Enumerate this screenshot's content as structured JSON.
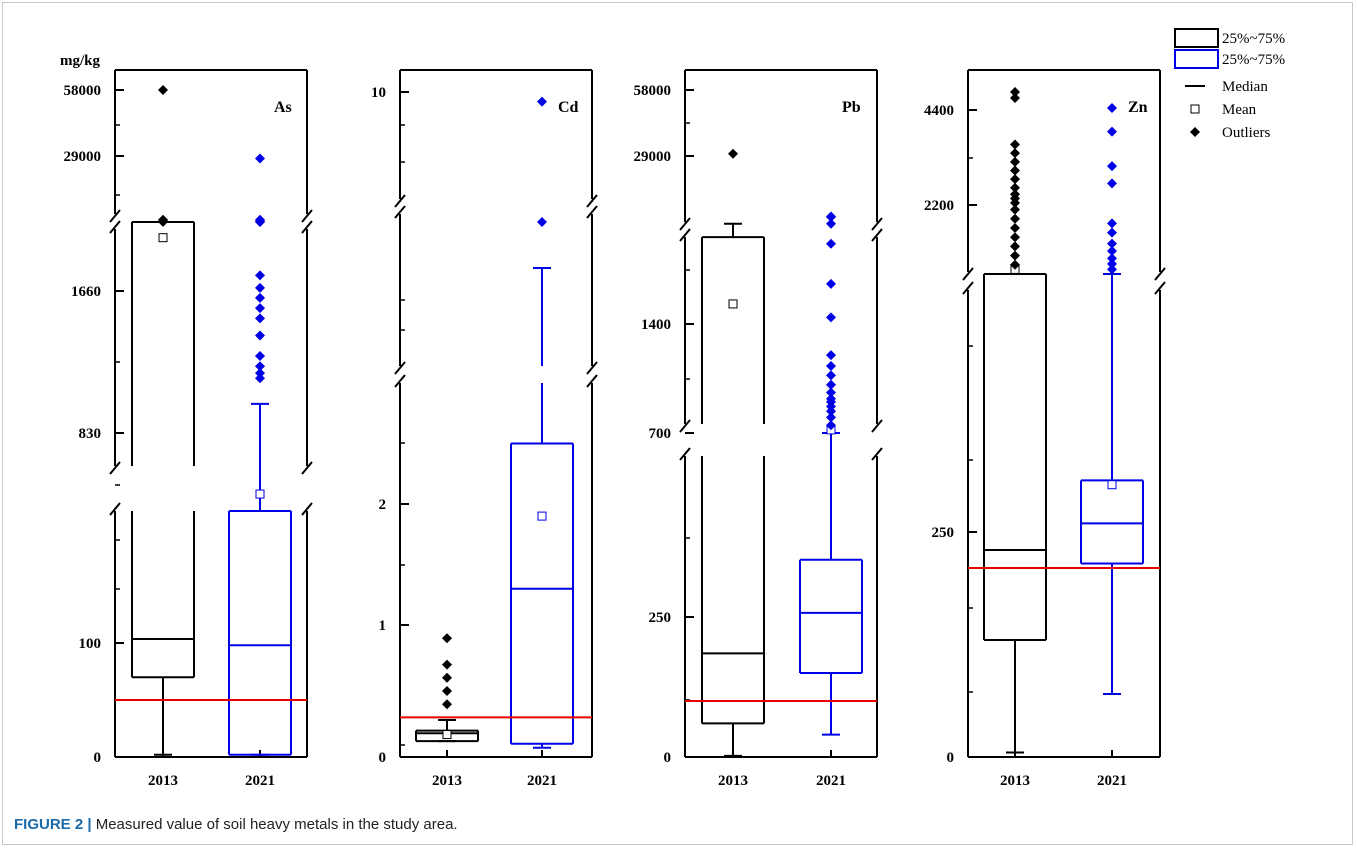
{
  "caption": {
    "label": "FIGURE 2 |",
    "text": "Measured value of soil heavy metals in the study area."
  },
  "colors": {
    "c2013": "#000000",
    "c2021": "#0000e6",
    "threshold": "#e60000"
  },
  "chart_data": [
    {
      "type": "box",
      "metal": "As",
      "unit": "mg/kg",
      "categories": [
        "2013",
        "2021"
      ],
      "ytick_labels": [
        "0",
        "100",
        "830",
        "1660",
        "29000",
        "58000"
      ],
      "threshold": 50,
      "series": [
        {
          "year": "2013",
          "min": 2,
          "q1": 70,
          "median": 115,
          "q3": 2100,
          "max": 2100,
          "mean": 2000,
          "outliers": [
            2150,
            2300,
            2400,
            2500,
            3000,
            58000
          ]
        },
        {
          "year": "2021",
          "min": 2,
          "q1": 2,
          "median": 98,
          "q3": 600,
          "max": 1000,
          "mean": 650,
          "outliers": [
            1150,
            1180,
            1220,
            1280,
            1400,
            1500,
            1560,
            1620,
            1680,
            1760,
            2100,
            2200,
            2400,
            3000,
            28000
          ]
        }
      ]
    },
    {
      "type": "box",
      "metal": "Cd",
      "unit": "",
      "categories": [
        "2013",
        "2021"
      ],
      "ytick_labels": [
        "0",
        "1",
        "2",
        "10"
      ],
      "threshold": 0.3,
      "series": [
        {
          "year": "2013",
          "min": 0.12,
          "q1": 0.12,
          "median": 0.18,
          "q3": 0.2,
          "max": 0.28,
          "mean": 0.17,
          "outliers": [
            0.4,
            0.5,
            0.6,
            0.7,
            0.9
          ]
        },
        {
          "year": "2021",
          "min": 0.07,
          "q1": 0.1,
          "median": 1.3,
          "q3": 2.5,
          "max": 6.5,
          "mean": 1.9,
          "outliers": [
            7.3,
            9.8
          ]
        }
      ]
    },
    {
      "type": "box",
      "metal": "Pb",
      "unit": "",
      "categories": [
        "2013",
        "2021"
      ],
      "ytick_labels": [
        "0",
        "250",
        "700",
        "1400",
        "29000",
        "58000"
      ],
      "threshold": 100,
      "series": [
        {
          "year": "2013",
          "min": 2,
          "q1": 60,
          "median": 185,
          "q3": 2700,
          "max": 2900,
          "mean": 1700,
          "outliers": [
            30000
          ]
        },
        {
          "year": "2021",
          "min": 40,
          "q1": 150,
          "median": 260,
          "q3": 390,
          "max": 700,
          "mean": 720,
          "outliers": [
            750,
            800,
            840,
            870,
            900,
            920,
            960,
            1010,
            1070,
            1130,
            1200,
            1500,
            2000,
            2600,
            2900,
            3000,
            3200
          ]
        }
      ]
    },
    {
      "type": "box",
      "metal": "Zn",
      "unit": "",
      "categories": [
        "2013",
        "2021"
      ],
      "ytick_labels": [
        "0",
        "250",
        "2200",
        "4400"
      ],
      "threshold": 210,
      "series": [
        {
          "year": "2013",
          "min": 5,
          "q1": 130,
          "median": 230,
          "q3": 1450,
          "max": 1450,
          "mean": 1500,
          "outliers": [
            1550,
            1650,
            1750,
            1850,
            1950,
            2050,
            2150,
            2250,
            2350,
            2450,
            2600,
            2800,
            3000,
            3200,
            3400,
            3600,
            4700,
            4850
          ]
        },
        {
          "year": "2021",
          "min": 70,
          "q1": 215,
          "median": 290,
          "q3": 490,
          "max": 1450,
          "mean": 470,
          "outliers": [
            1500,
            1560,
            1620,
            1700,
            1780,
            1900,
            2000,
            2700,
            3100,
            3900,
            4450
          ]
        }
      ]
    }
  ],
  "legend": {
    "placement": "top-right",
    "items": [
      {
        "label": "25%~75%",
        "symbol": "box",
        "color": "#000000"
      },
      {
        "label": "25%~75%",
        "symbol": "box",
        "color": "#0000e6"
      },
      {
        "label": "Median",
        "symbol": "line",
        "color": "#000000"
      },
      {
        "label": "Mean",
        "symbol": "square",
        "color": "#000000"
      },
      {
        "label": "Outliers",
        "symbol": "diamond",
        "color": "#000000"
      }
    ]
  }
}
